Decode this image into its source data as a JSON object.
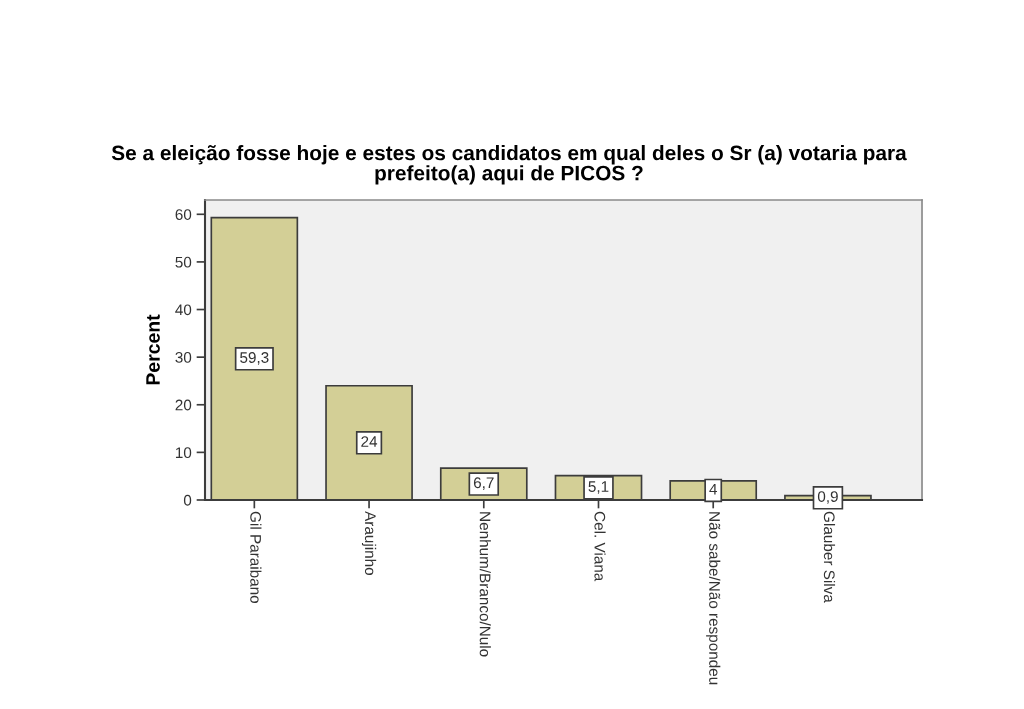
{
  "chart_data": {
    "type": "bar",
    "title": "Se a eleição fosse hoje e estes os candidatos em qual deles o Sr (a) votaria para prefeito(a) aqui de PICOS ?",
    "ylabel": "Percent",
    "categories": [
      "Gil Paraibano",
      "Araujinho",
      "Nenhum/Branco/Nulo",
      "Cel. Viana",
      "Não sabe/Não respondeu",
      "Glauber Silva"
    ],
    "values": [
      59.3,
      24,
      6.7,
      5.1,
      4,
      0.9
    ],
    "value_labels": [
      "59,3",
      "24",
      "6,7",
      "5,1",
      "4",
      "0,9"
    ],
    "color": "#d3cf96",
    "ylim": [
      0,
      63
    ],
    "yticks": [
      0,
      10,
      20,
      30,
      40,
      50,
      60
    ]
  }
}
